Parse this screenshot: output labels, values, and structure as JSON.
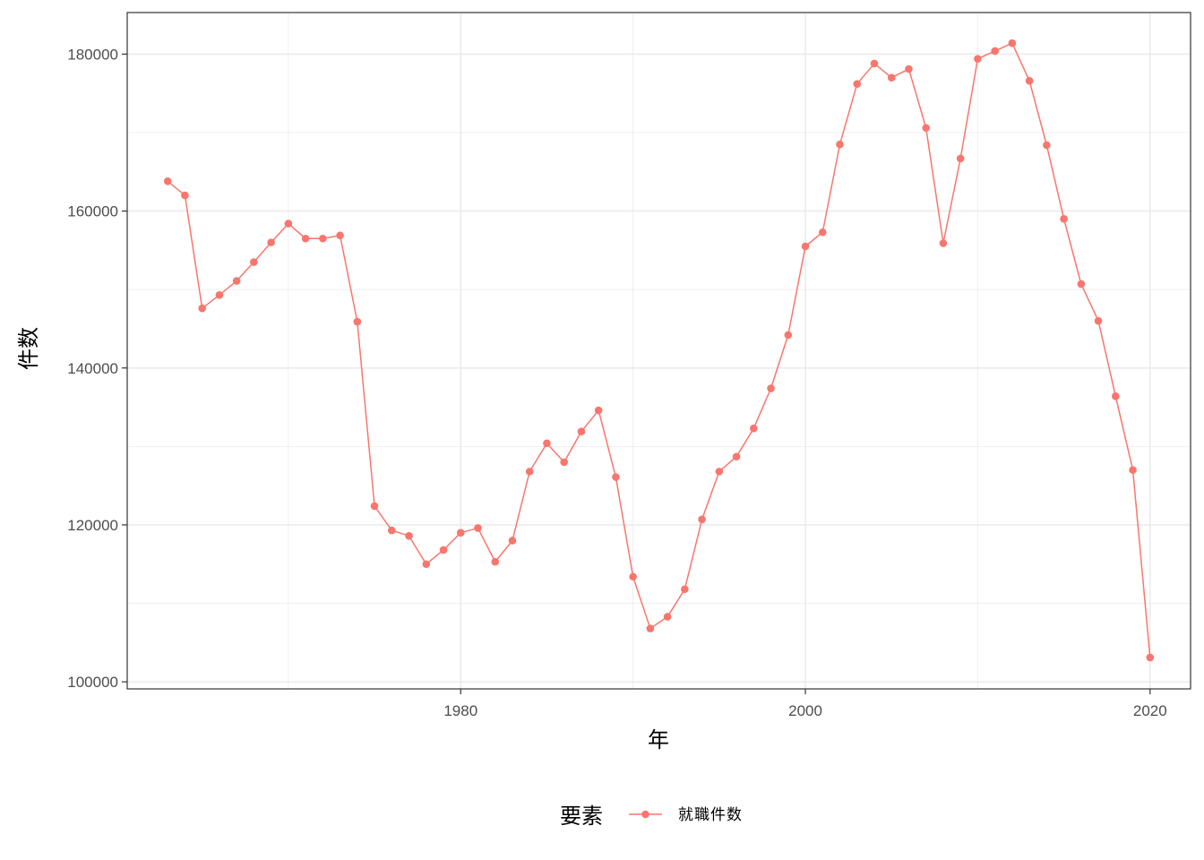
{
  "chart_data": {
    "type": "line",
    "title": "",
    "xlabel": "年",
    "ylabel": "件数",
    "x": [
      1963,
      1964,
      1965,
      1966,
      1967,
      1968,
      1969,
      1970,
      1971,
      1972,
      1973,
      1974,
      1975,
      1976,
      1977,
      1978,
      1979,
      1980,
      1981,
      1982,
      1983,
      1984,
      1985,
      1986,
      1987,
      1988,
      1989,
      1990,
      1991,
      1992,
      1993,
      1994,
      1995,
      1996,
      1997,
      1998,
      1999,
      2000,
      2001,
      2002,
      2003,
      2004,
      2005,
      2006,
      2007,
      2008,
      2009,
      2010,
      2011,
      2012,
      2013,
      2014,
      2015,
      2016,
      2017,
      2018,
      2019,
      2020
    ],
    "series": [
      {
        "name": "就職件数",
        "color": "#F8766D",
        "values": [
          163800,
          162000,
          147600,
          149300,
          151100,
          153500,
          156000,
          158400,
          156500,
          156500,
          156900,
          145900,
          122400,
          119300,
          118600,
          115000,
          116800,
          119000,
          119600,
          115300,
          118000,
          126800,
          130400,
          128000,
          131900,
          134600,
          126100,
          113400,
          106800,
          108300,
          111800,
          120700,
          126800,
          128700,
          132300,
          137400,
          144200,
          155500,
          157300,
          168500,
          176200,
          178800,
          177000,
          178100,
          170600,
          155900,
          166700,
          179400,
          180400,
          181400,
          176600,
          168400,
          159000,
          150700,
          146000,
          136400,
          127000,
          103100
        ]
      }
    ],
    "xlim": [
      1960.65,
      2022.35
    ],
    "ylim": [
      99100,
      185300
    ],
    "x_ticks": [
      1980,
      2000,
      2020
    ],
    "x_minor_ticks": [
      1970,
      1990,
      2010
    ],
    "y_ticks": [
      100000,
      120000,
      140000,
      160000,
      180000
    ],
    "y_minor_ticks": [
      110000,
      130000,
      150000,
      170000
    ],
    "grid": true,
    "legend": {
      "title": "要素",
      "position": "bottom",
      "entries": [
        "就職件数"
      ]
    }
  }
}
